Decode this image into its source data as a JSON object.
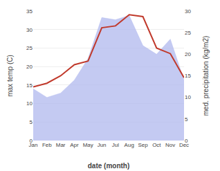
{
  "chart_data": {
    "type": "line",
    "categories": [
      "Jan",
      "Feb",
      "Mar",
      "Apr",
      "May",
      "Jun",
      "Jul",
      "Aug",
      "Sep",
      "Oct",
      "Nov",
      "Dec"
    ],
    "series": [
      {
        "type": "area",
        "color": "#b0b8ee",
        "axis": "y2",
        "values": [
          12.0,
          10.0,
          11.0,
          14.0,
          19.0,
          28.5,
          28.0,
          29.0,
          22.0,
          20.0,
          23.5,
          14.0
        ]
      },
      {
        "type": "line",
        "color": "#c0392b",
        "values": [
          14.5,
          15.5,
          17.5,
          20.5,
          21.5,
          30.5,
          31.0,
          34.0,
          33.5,
          25.0,
          23.5,
          17.0
        ]
      }
    ],
    "xlabel": "date (month)",
    "ylabel": "max temp (C)",
    "y2label": "med. precipitation (kg/m2)",
    "ylim": [
      0,
      35
    ],
    "yticks": [
      0,
      5,
      10,
      15,
      20,
      25,
      30,
      35
    ],
    "y2lim": [
      0,
      30
    ],
    "y2ticks": [
      0,
      5,
      10,
      15,
      20,
      25,
      30
    ],
    "grid": true
  }
}
